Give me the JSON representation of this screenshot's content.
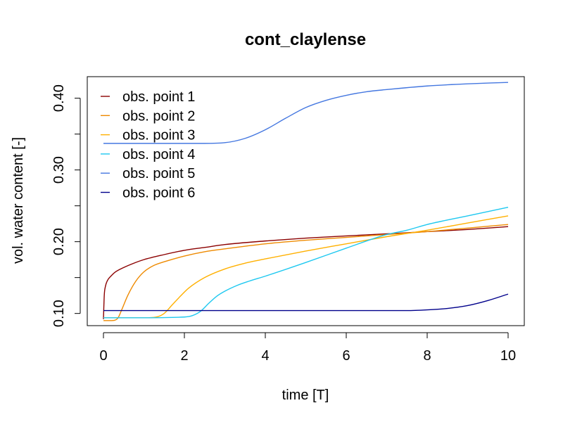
{
  "chart_data": {
    "type": "line",
    "title": "cont_claylense",
    "xlabel": "time [T]",
    "ylabel": "vol. water content [-]",
    "xlim": [
      -0.4,
      10.4
    ],
    "ylim": [
      0.083,
      0.43
    ],
    "x_ticks": [
      0,
      2,
      4,
      6,
      8,
      10
    ],
    "x_tick_labels": [
      "0",
      "2",
      "4",
      "6",
      "8",
      "10"
    ],
    "y_ticks": [
      0.1,
      0.15,
      0.2,
      0.25,
      0.3,
      0.35,
      0.4
    ],
    "y_tick_labels": [
      "0.10",
      "",
      "0.20",
      "",
      "0.30",
      "",
      "0.40"
    ],
    "legend_position": "top-left",
    "grid": false,
    "series": [
      {
        "name": "obs. point 1",
        "color": "#8b0000",
        "x": [
          0,
          0.02,
          0.05,
          0.1,
          0.2,
          0.3,
          0.5,
          0.75,
          1,
          1.5,
          2,
          2.5,
          3,
          4,
          5,
          6,
          7,
          8,
          9,
          10
        ],
        "y": [
          0.092,
          0.125,
          0.138,
          0.146,
          0.153,
          0.158,
          0.164,
          0.17,
          0.175,
          0.182,
          0.188,
          0.192,
          0.196,
          0.201,
          0.205,
          0.208,
          0.211,
          0.214,
          0.217,
          0.221
        ]
      },
      {
        "name": "obs. point 2",
        "color": "#ee8a00",
        "x": [
          0,
          0.2,
          0.35,
          0.45,
          0.6,
          0.8,
          1,
          1.25,
          1.5,
          2,
          2.5,
          3,
          4,
          5,
          6,
          7,
          8,
          9,
          10
        ],
        "y": [
          0.09,
          0.09,
          0.093,
          0.105,
          0.125,
          0.145,
          0.158,
          0.167,
          0.172,
          0.18,
          0.186,
          0.19,
          0.197,
          0.202,
          0.206,
          0.21,
          0.214,
          0.219,
          0.224
        ]
      },
      {
        "name": "obs. point 3",
        "color": "#ffb000",
        "x": [
          0,
          0.5,
          1,
          1.3,
          1.5,
          1.7,
          1.9,
          2.1,
          2.5,
          3,
          3.5,
          4,
          5,
          6,
          7,
          8,
          9,
          10
        ],
        "y": [
          0.094,
          0.094,
          0.094,
          0.095,
          0.1,
          0.112,
          0.124,
          0.135,
          0.15,
          0.162,
          0.17,
          0.176,
          0.187,
          0.197,
          0.207,
          0.216,
          0.226,
          0.236
        ]
      },
      {
        "name": "obs. point 4",
        "color": "#1ec8f0",
        "x": [
          0,
          1,
          2,
          2.2,
          2.4,
          2.6,
          2.8,
          3,
          3.3,
          3.6,
          4,
          5,
          6,
          7,
          7.5,
          8,
          9,
          10
        ],
        "y": [
          0.094,
          0.094,
          0.095,
          0.097,
          0.103,
          0.114,
          0.124,
          0.131,
          0.139,
          0.145,
          0.152,
          0.171,
          0.191,
          0.21,
          0.216,
          0.224,
          0.236,
          0.248
        ]
      },
      {
        "name": "obs. point 5",
        "color": "#4477e0",
        "x": [
          0,
          1,
          2,
          2.5,
          3,
          3.5,
          4,
          4.5,
          5,
          5.5,
          6,
          6.5,
          7,
          8,
          9,
          10
        ],
        "y": [
          0.337,
          0.337,
          0.337,
          0.337,
          0.338,
          0.344,
          0.356,
          0.372,
          0.387,
          0.397,
          0.404,
          0.409,
          0.412,
          0.417,
          0.42,
          0.422
        ]
      },
      {
        "name": "obs. point 6",
        "color": "#00008b",
        "x": [
          0,
          2,
          4,
          6,
          7,
          7.5,
          8,
          8.5,
          9,
          9.5,
          10
        ],
        "y": [
          0.104,
          0.104,
          0.104,
          0.104,
          0.104,
          0.104,
          0.105,
          0.107,
          0.111,
          0.118,
          0.127
        ]
      }
    ]
  }
}
